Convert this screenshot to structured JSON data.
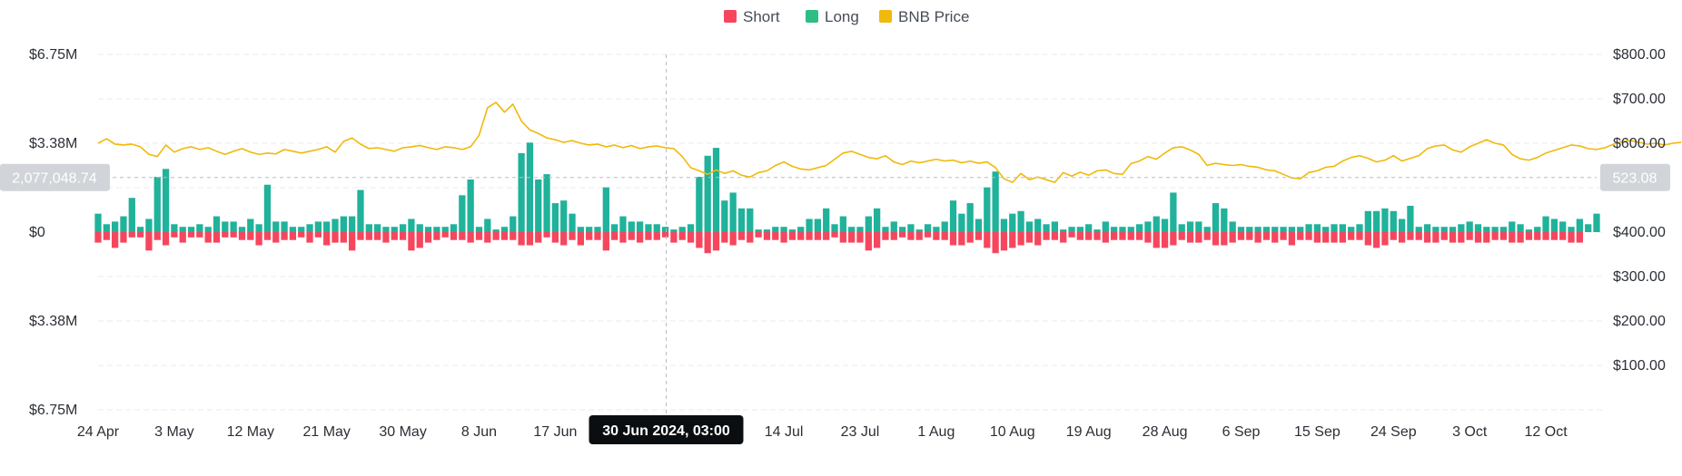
{
  "chart_data": {
    "type": "bar",
    "title": "",
    "legend": [
      {
        "name": "Short",
        "color": "#f6465d"
      },
      {
        "name": "Long",
        "color": "#2ebd85"
      },
      {
        "name": "BNB Price",
        "color": "#f0b90b"
      }
    ],
    "colors": {
      "short": "#f6465d",
      "long": "#20b29a",
      "price": "#f0b90b",
      "grid": "#e9ebee",
      "crosshair": "#b7bdc6",
      "pill_bg": "#d1d4d8",
      "tooltip_bg": "#0b0e11"
    },
    "x_ticks": [
      "24 Apr",
      "3 May",
      "12 May",
      "21 May",
      "30 May",
      "8 Jun",
      "17 Jun",
      "14 Jul",
      "23 Jul",
      "1 Aug",
      "10 Aug",
      "19 Aug",
      "28 Aug",
      "6 Sep",
      "15 Sep",
      "24 Sep",
      "3 Oct",
      "12 Oct"
    ],
    "x_tick_days": [
      0,
      9,
      18,
      27,
      36,
      45,
      54,
      81,
      90,
      99,
      108,
      117,
      126,
      135,
      144,
      153,
      162,
      171
    ],
    "left_axis": {
      "min": -6.75,
      "max": 6.75,
      "ticks": [
        {
          "value": 6.75,
          "label": "$6.75M"
        },
        {
          "value": 3.38,
          "label": "$3.38M"
        },
        {
          "value": 0,
          "label": "$0"
        },
        {
          "value": -3.38,
          "label": "$3.38M"
        },
        {
          "value": -6.75,
          "label": "$6.75M"
        }
      ]
    },
    "right_axis": {
      "min": 0,
      "max": 800,
      "ticks": [
        {
          "value": 800,
          "label": "$800.00"
        },
        {
          "value": 700,
          "label": "$700.00"
        },
        {
          "value": 600,
          "label": "$600.00"
        },
        {
          "value": 500,
          "label": ""
        },
        {
          "value": 400,
          "label": "$400.00"
        },
        {
          "value": 300,
          "label": "$300.00"
        },
        {
          "value": 200,
          "label": "$200.00"
        },
        {
          "value": 100,
          "label": "$100.00"
        }
      ]
    },
    "crosshair": {
      "date_label": "30 Jun 2024, 03:00",
      "day": 67.1,
      "left_value_label": "2,077,048.74",
      "left_value": 2.077,
      "right_value_label": "523.08",
      "right_value": 523.08
    },
    "long": [
      0.7,
      0.3,
      0.4,
      0.6,
      1.3,
      0.2,
      0.5,
      2.1,
      2.4,
      0.3,
      0.2,
      0.2,
      0.3,
      0.2,
      0.6,
      0.4,
      0.4,
      0.2,
      0.5,
      0.3,
      1.8,
      0.4,
      0.4,
      0.2,
      0.2,
      0.3,
      0.4,
      0.4,
      0.5,
      0.6,
      0.6,
      1.6,
      0.3,
      0.3,
      0.2,
      0.2,
      0.3,
      0.5,
      0.3,
      0.2,
      0.2,
      0.2,
      0.3,
      1.4,
      2.0,
      0.2,
      0.5,
      0.1,
      0.2,
      0.6,
      3.0,
      3.4,
      2.0,
      2.2,
      1.1,
      1.2,
      0.7,
      0.2,
      0.2,
      0.2,
      1.7,
      0.3,
      0.6,
      0.4,
      0.4,
      0.3,
      0.3,
      0.2,
      0.1,
      0.2,
      0.3,
      2.1,
      2.9,
      3.2,
      1.2,
      1.5,
      0.9,
      0.9,
      0.1,
      0.1,
      0.2,
      0.2,
      0.1,
      0.2,
      0.5,
      0.5,
      0.9,
      0.3,
      0.6,
      0.2,
      0.2,
      0.6,
      0.9,
      0.2,
      0.4,
      0.2,
      0.3,
      0.1,
      0.3,
      0.2,
      0.4,
      1.2,
      0.7,
      1.1,
      0.5,
      1.7,
      2.3,
      0.5,
      0.7,
      0.8,
      0.4,
      0.5,
      0.3,
      0.4,
      0.1,
      0.2,
      0.2,
      0.3,
      0.1,
      0.4,
      0.2,
      0.2,
      0.2,
      0.3,
      0.4,
      0.6,
      0.5,
      1.5,
      0.3,
      0.4,
      0.4,
      0.2,
      1.1,
      0.9,
      0.4,
      0.2,
      0.2,
      0.2,
      0.2,
      0.2,
      0.2,
      0.2,
      0.2,
      0.3,
      0.3,
      0.2,
      0.3,
      0.3,
      0.2,
      0.3,
      0.8,
      0.8,
      0.9,
      0.8,
      0.5,
      1.0,
      0.2,
      0.3,
      0.2,
      0.2,
      0.2,
      0.3,
      0.4,
      0.3,
      0.2,
      0.2,
      0.2,
      0.4,
      0.3,
      0.1,
      0.2,
      0.6,
      0.5,
      0.4,
      0.2,
      0.5,
      0.3,
      0.7
    ],
    "short": [
      0.4,
      0.3,
      0.6,
      0.4,
      0.2,
      0.2,
      0.7,
      0.3,
      0.5,
      0.2,
      0.4,
      0.2,
      0.2,
      0.4,
      0.4,
      0.2,
      0.2,
      0.3,
      0.3,
      0.5,
      0.3,
      0.4,
      0.3,
      0.3,
      0.2,
      0.4,
      0.2,
      0.5,
      0.4,
      0.4,
      0.7,
      0.3,
      0.3,
      0.3,
      0.4,
      0.3,
      0.3,
      0.7,
      0.6,
      0.4,
      0.3,
      0.2,
      0.3,
      0.3,
      0.4,
      0.3,
      0.4,
      0.3,
      0.3,
      0.3,
      0.5,
      0.5,
      0.4,
      0.2,
      0.4,
      0.5,
      0.3,
      0.5,
      0.3,
      0.3,
      0.7,
      0.3,
      0.4,
      0.3,
      0.4,
      0.3,
      0.3,
      0.2,
      0.4,
      0.3,
      0.4,
      0.6,
      0.8,
      0.7,
      0.4,
      0.5,
      0.3,
      0.4,
      0.2,
      0.3,
      0.3,
      0.4,
      0.3,
      0.3,
      0.3,
      0.3,
      0.3,
      0.2,
      0.4,
      0.4,
      0.4,
      0.7,
      0.6,
      0.3,
      0.3,
      0.2,
      0.3,
      0.3,
      0.2,
      0.3,
      0.3,
      0.5,
      0.5,
      0.4,
      0.3,
      0.6,
      0.8,
      0.7,
      0.6,
      0.5,
      0.4,
      0.5,
      0.3,
      0.3,
      0.4,
      0.2,
      0.3,
      0.3,
      0.3,
      0.4,
      0.3,
      0.3,
      0.3,
      0.3,
      0.4,
      0.6,
      0.6,
      0.5,
      0.3,
      0.4,
      0.4,
      0.3,
      0.5,
      0.5,
      0.4,
      0.3,
      0.3,
      0.4,
      0.3,
      0.4,
      0.3,
      0.5,
      0.3,
      0.3,
      0.4,
      0.4,
      0.4,
      0.4,
      0.3,
      0.3,
      0.5,
      0.6,
      0.5,
      0.3,
      0.4,
      0.3,
      0.3,
      0.4,
      0.4,
      0.3,
      0.4,
      0.4,
      0.3,
      0.4,
      0.4,
      0.3,
      0.3,
      0.4,
      0.4,
      0.3,
      0.3,
      0.3,
      0.3,
      0.3,
      0.4,
      0.4
    ],
    "price": [
      600,
      610,
      598,
      596,
      598,
      592,
      575,
      570,
      596,
      580,
      588,
      592,
      586,
      590,
      582,
      575,
      582,
      588,
      580,
      575,
      578,
      576,
      586,
      582,
      578,
      582,
      586,
      592,
      580,
      604,
      612,
      598,
      588,
      590,
      586,
      582,
      590,
      592,
      595,
      590,
      586,
      592,
      590,
      586,
      592,
      618,
      680,
      692,
      670,
      688,
      650,
      630,
      622,
      612,
      608,
      602,
      606,
      600,
      596,
      598,
      592,
      596,
      590,
      595,
      588,
      592,
      594,
      590,
      588,
      570,
      545,
      538,
      530,
      540,
      532,
      538,
      528,
      524,
      534,
      538,
      550,
      558,
      548,
      542,
      540,
      545,
      550,
      564,
      578,
      582,
      575,
      568,
      565,
      572,
      558,
      552,
      560,
      556,
      560,
      564,
      560,
      562,
      556,
      560,
      555,
      558,
      545,
      520,
      512,
      532,
      518,
      524,
      518,
      512,
      534,
      526,
      535,
      528,
      538,
      540,
      532,
      530,
      554,
      560,
      570,
      564,
      578,
      590,
      592,
      585,
      575,
      550,
      555,
      552,
      550,
      552,
      548,
      546,
      540,
      538,
      530,
      522,
      520,
      534,
      538,
      546,
      548,
      560,
      568,
      572,
      566,
      558,
      562,
      572,
      560,
      566,
      572,
      588,
      594,
      596,
      585,
      580,
      592,
      600,
      608,
      600,
      596,
      575,
      565,
      562,
      568,
      578,
      584,
      590,
      596,
      594,
      588,
      586,
      590,
      598,
      604,
      606,
      602,
      598,
      600,
      596,
      600,
      602
    ]
  }
}
